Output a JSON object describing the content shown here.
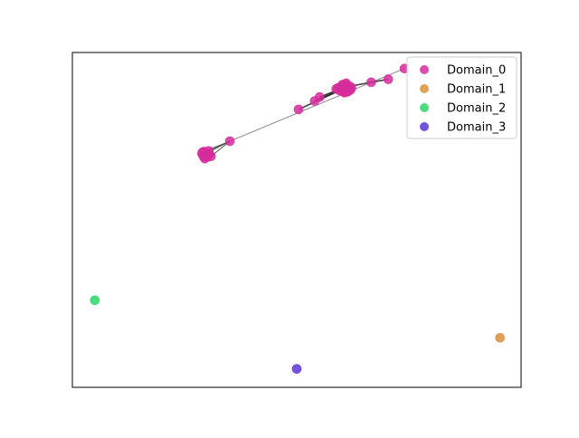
{
  "chart_data": {
    "type": "scatter",
    "title": "",
    "xlabel": "",
    "ylabel": "",
    "axes_visible": false,
    "grid": false,
    "legend_placement": "top-right",
    "xlim": [
      0,
      100
    ],
    "ylim": [
      0,
      100
    ],
    "series": [
      {
        "name": "Domain_0",
        "color": "#d62d9b",
        "points": [
          [
            60.0,
            89.0
          ],
          [
            60.8,
            89.6
          ],
          [
            61.4,
            88.3
          ],
          [
            60.2,
            90.4
          ],
          [
            61.8,
            89.9
          ],
          [
            59.6,
            88.6
          ],
          [
            61.0,
            90.8
          ],
          [
            60.6,
            88.0
          ],
          [
            62.0,
            88.9
          ],
          [
            59.2,
            89.4
          ],
          [
            60.4,
            89.2
          ],
          [
            61.2,
            89.4
          ],
          [
            60.7,
            90.0
          ],
          [
            61.6,
            88.7
          ],
          [
            59.9,
            89.8
          ],
          [
            60.3,
            88.4
          ],
          [
            61.1,
            88.2
          ],
          [
            62.2,
            89.5
          ],
          [
            58.8,
            89.1
          ],
          [
            60.9,
            90.4
          ],
          [
            29.3,
            70.4
          ],
          [
            29.9,
            69.4
          ],
          [
            28.9,
            69.8
          ],
          [
            30.4,
            70.6
          ],
          [
            30.0,
            68.7
          ],
          [
            29.5,
            68.3
          ],
          [
            30.9,
            69.0
          ],
          [
            29.2,
            69.0
          ],
          [
            30.5,
            69.7
          ],
          [
            29.6,
            70.0
          ],
          [
            29.0,
            70.2
          ],
          [
            29.7,
            69.2
          ],
          [
            35.1,
            73.5
          ],
          [
            50.4,
            83.0
          ],
          [
            54.0,
            85.5
          ],
          [
            55.1,
            86.7
          ],
          [
            66.6,
            91.1
          ],
          [
            70.4,
            92.0
          ],
          [
            74.0,
            95.2
          ]
        ]
      },
      {
        "name": "Domain_1",
        "color": "#d89038",
        "points": [
          [
            95.3,
            14.8
          ]
        ]
      },
      {
        "name": "Domain_2",
        "color": "#2ed56a",
        "points": [
          [
            5.0,
            26.0
          ]
        ]
      },
      {
        "name": "Domain_3",
        "color": "#5b34d6",
        "points": [
          [
            50.0,
            5.5
          ]
        ]
      }
    ],
    "edges": [
      {
        "from": [
          35.1,
          73.5
        ],
        "to": [
          74.0,
          95.2
        ],
        "color": "#777777",
        "width": 1.0
      },
      {
        "from": [
          29.6,
          69.7
        ],
        "to": [
          35.1,
          73.5
        ],
        "color": "#444444",
        "width": 1.0
      },
      {
        "from": [
          29.3,
          70.4
        ],
        "to": [
          35.1,
          73.5
        ],
        "color": "#444444",
        "width": 1.0
      },
      {
        "from": [
          30.4,
          70.6
        ],
        "to": [
          35.1,
          73.5
        ],
        "color": "#444444",
        "width": 1.0
      },
      {
        "from": [
          30.9,
          69.0
        ],
        "to": [
          35.1,
          73.5
        ],
        "color": "#444444",
        "width": 1.0
      },
      {
        "from": [
          50.4,
          83.0
        ],
        "to": [
          60.2,
          89.0
        ],
        "color": "#222222",
        "width": 1.6
      },
      {
        "from": [
          54.0,
          85.5
        ],
        "to": [
          60.4,
          89.3
        ],
        "color": "#222222",
        "width": 1.6
      },
      {
        "from": [
          55.1,
          86.7
        ],
        "to": [
          60.7,
          89.6
        ],
        "color": "#222222",
        "width": 1.6
      },
      {
        "from": [
          58.8,
          89.1
        ],
        "to": [
          62.0,
          88.9
        ],
        "color": "#222222",
        "width": 2.0
      },
      {
        "from": [
          59.6,
          88.6
        ],
        "to": [
          62.2,
          89.5
        ],
        "color": "#222222",
        "width": 2.0
      },
      {
        "from": [
          60.2,
          90.4
        ],
        "to": [
          61.8,
          88.3
        ],
        "color": "#222222",
        "width": 2.0
      },
      {
        "from": [
          61.8,
          89.9
        ],
        "to": [
          66.6,
          91.1
        ],
        "color": "#222222",
        "width": 1.6
      },
      {
        "from": [
          66.6,
          91.1
        ],
        "to": [
          70.4,
          92.0
        ],
        "color": "#222222",
        "width": 1.6
      }
    ]
  }
}
